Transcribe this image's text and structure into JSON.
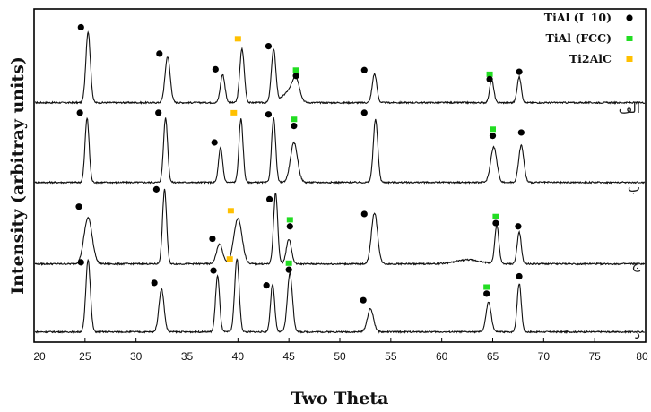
{
  "chart_data": {
    "type": "line",
    "xlabel": "Two Theta",
    "ylabel": "Intensity (arbitray units)",
    "xlim": [
      20,
      80
    ],
    "xticks": [
      20,
      25,
      30,
      35,
      40,
      45,
      50,
      55,
      60,
      65,
      70,
      75,
      80
    ],
    "grid": false,
    "legend_position": "top-right",
    "legend": [
      {
        "label": "TiAl (L 10)",
        "marker": "circle",
        "color": "#000000"
      },
      {
        "label": "TiAl (FCC)",
        "marker": "square",
        "color": "#22dd22"
      },
      {
        "label": "Ti2AlC",
        "marker": "square",
        "color": "#ffc000"
      }
    ],
    "series": [
      {
        "name": "الف",
        "peaks": [
          {
            "x": 25.3,
            "height": 0.86,
            "width": 0.22
          },
          {
            "x": 33.1,
            "height": 0.56,
            "width": 0.25
          },
          {
            "x": 38.5,
            "height": 0.34,
            "width": 0.22
          },
          {
            "x": 40.4,
            "height": 0.65,
            "width": 0.22
          },
          {
            "x": 43.5,
            "height": 0.64,
            "width": 0.22
          },
          {
            "x": 45.0,
            "height": 0.13,
            "width": 0.6
          },
          {
            "x": 45.7,
            "height": 0.25,
            "width": 0.35
          },
          {
            "x": 53.4,
            "height": 0.35,
            "width": 0.22
          },
          {
            "x": 64.9,
            "height": 0.28,
            "width": 0.2
          },
          {
            "x": 67.6,
            "height": 0.31,
            "width": 0.2
          }
        ],
        "markers": [
          {
            "x": 24.6,
            "type": "L10",
            "level": 0.93
          },
          {
            "x": 32.3,
            "type": "L10",
            "level": 0.61
          },
          {
            "x": 37.8,
            "type": "L10",
            "level": 0.42
          },
          {
            "x": 40.0,
            "type": "Ti2AlC",
            "level": 0.79
          },
          {
            "x": 43.0,
            "type": "L10",
            "level": 0.7
          },
          {
            "x": 45.7,
            "type": "FCC",
            "level": 0.41
          },
          {
            "x": 45.7,
            "type": "L10",
            "level": 0.34
          },
          {
            "x": 52.4,
            "type": "L10",
            "level": 0.41
          },
          {
            "x": 64.7,
            "type": "FCC",
            "level": 0.36
          },
          {
            "x": 64.7,
            "type": "L10",
            "level": 0.3
          },
          {
            "x": 67.6,
            "type": "L10",
            "level": 0.39
          }
        ]
      },
      {
        "name": "ب",
        "peaks": [
          {
            "x": 25.2,
            "height": 0.78,
            "width": 0.2
          },
          {
            "x": 32.9,
            "height": 0.78,
            "width": 0.2
          },
          {
            "x": 38.3,
            "height": 0.42,
            "width": 0.2
          },
          {
            "x": 40.3,
            "height": 0.77,
            "width": 0.2
          },
          {
            "x": 43.5,
            "height": 0.78,
            "width": 0.2
          },
          {
            "x": 45.5,
            "height": 0.48,
            "width": 0.35
          },
          {
            "x": 53.5,
            "height": 0.76,
            "width": 0.22
          },
          {
            "x": 65.1,
            "height": 0.43,
            "width": 0.3
          },
          {
            "x": 67.8,
            "height": 0.45,
            "width": 0.25
          }
        ],
        "markers": [
          {
            "x": 24.5,
            "type": "L10",
            "level": 0.86
          },
          {
            "x": 32.2,
            "type": "L10",
            "level": 0.86
          },
          {
            "x": 37.7,
            "type": "L10",
            "level": 0.5
          },
          {
            "x": 39.6,
            "type": "Ti2AlC",
            "level": 0.86
          },
          {
            "x": 43.0,
            "type": "L10",
            "level": 0.84
          },
          {
            "x": 45.5,
            "type": "FCC",
            "level": 0.78
          },
          {
            "x": 45.5,
            "type": "L10",
            "level": 0.7
          },
          {
            "x": 52.4,
            "type": "L10",
            "level": 0.86
          },
          {
            "x": 65.0,
            "type": "FCC",
            "level": 0.66
          },
          {
            "x": 65.0,
            "type": "L10",
            "level": 0.58
          },
          {
            "x": 67.8,
            "type": "L10",
            "level": 0.62
          }
        ]
      },
      {
        "name": "ج",
        "peaks": [
          {
            "x": 25.3,
            "height": 0.56,
            "width": 0.4
          },
          {
            "x": 32.8,
            "height": 0.9,
            "width": 0.2
          },
          {
            "x": 38.2,
            "height": 0.24,
            "width": 0.3
          },
          {
            "x": 40.0,
            "height": 0.55,
            "width": 0.4
          },
          {
            "x": 43.7,
            "height": 0.86,
            "width": 0.2
          },
          {
            "x": 45.0,
            "height": 0.3,
            "width": 0.25
          },
          {
            "x": 53.4,
            "height": 0.62,
            "width": 0.3
          },
          {
            "x": 62.6,
            "height": 0.05,
            "width": 1.2
          },
          {
            "x": 65.4,
            "height": 0.46,
            "width": 0.2
          },
          {
            "x": 67.6,
            "height": 0.38,
            "width": 0.2
          }
        ],
        "markers": [
          {
            "x": 24.4,
            "type": "L10",
            "level": 0.71
          },
          {
            "x": 32.0,
            "type": "L10",
            "level": 0.92
          },
          {
            "x": 37.5,
            "type": "L10",
            "level": 0.32
          },
          {
            "x": 39.3,
            "type": "Ti2AlC",
            "level": 0.66
          },
          {
            "x": 43.1,
            "type": "L10",
            "level": 0.8
          },
          {
            "x": 45.1,
            "type": "FCC",
            "level": 0.55
          },
          {
            "x": 45.1,
            "type": "L10",
            "level": 0.47
          },
          {
            "x": 52.4,
            "type": "L10",
            "level": 0.62
          },
          {
            "x": 65.3,
            "type": "FCC",
            "level": 0.59
          },
          {
            "x": 65.3,
            "type": "L10",
            "level": 0.51
          },
          {
            "x": 67.5,
            "type": "L10",
            "level": 0.47
          }
        ]
      },
      {
        "name": "د",
        "peaks": [
          {
            "x": 25.3,
            "height": 0.88,
            "width": 0.22
          },
          {
            "x": 32.5,
            "height": 0.52,
            "width": 0.25
          },
          {
            "x": 38.0,
            "height": 0.68,
            "width": 0.2
          },
          {
            "x": 39.9,
            "height": 0.89,
            "width": 0.22
          },
          {
            "x": 43.4,
            "height": 0.58,
            "width": 0.2
          },
          {
            "x": 45.1,
            "height": 0.71,
            "width": 0.25
          },
          {
            "x": 53.0,
            "height": 0.28,
            "width": 0.3
          },
          {
            "x": 64.6,
            "height": 0.36,
            "width": 0.25
          },
          {
            "x": 67.6,
            "height": 0.59,
            "width": 0.2
          }
        ],
        "markers": [
          {
            "x": 24.6,
            "type": "L10",
            "level": 0.86
          },
          {
            "x": 31.8,
            "type": "L10",
            "level": 0.61
          },
          {
            "x": 37.6,
            "type": "L10",
            "level": 0.76
          },
          {
            "x": 39.2,
            "type": "Ti2AlC",
            "level": 0.9
          },
          {
            "x": 42.8,
            "type": "L10",
            "level": 0.58
          },
          {
            "x": 45.0,
            "type": "FCC",
            "level": 0.85
          },
          {
            "x": 45.0,
            "type": "L10",
            "level": 0.77
          },
          {
            "x": 52.3,
            "type": "L10",
            "level": 0.4
          },
          {
            "x": 64.4,
            "type": "FCC",
            "level": 0.56
          },
          {
            "x": 64.4,
            "type": "L10",
            "level": 0.48
          },
          {
            "x": 67.6,
            "type": "L10",
            "level": 0.69
          }
        ]
      }
    ]
  }
}
